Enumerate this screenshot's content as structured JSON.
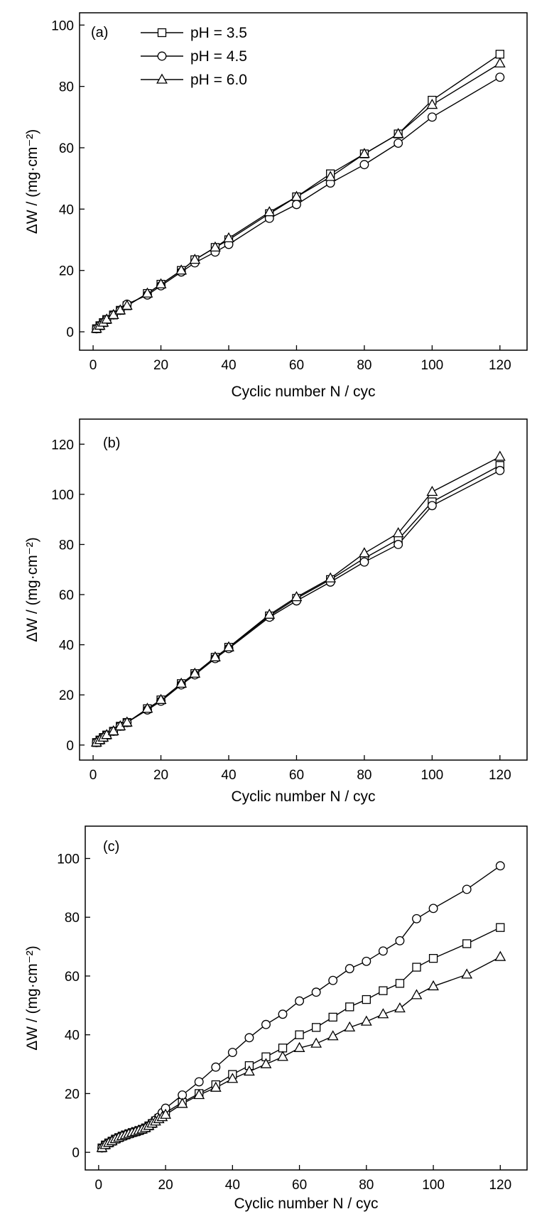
{
  "chart_data": [
    {
      "type": "line",
      "panel_label": "(a)",
      "xlabel": "Cyclic number N / cyc",
      "ylabel": "ΔW / (mg·cm⁻²)",
      "xlim": [
        -4,
        128
      ],
      "ylim": [
        -6,
        104
      ],
      "xticks": [
        0,
        20,
        40,
        60,
        80,
        100,
        120
      ],
      "yticks": [
        0,
        20,
        40,
        60,
        80,
        100
      ],
      "legend_position": "top-left",
      "grid": false,
      "series": [
        {
          "name": "pH = 3.5",
          "marker": "square",
          "x": [
            1,
            2,
            3,
            4,
            6,
            8,
            10,
            16,
            20,
            26,
            30,
            36,
            40,
            52,
            60,
            70,
            80,
            90,
            100,
            120
          ],
          "y": [
            1.0,
            2.0,
            3.0,
            4.0,
            5.5,
            7.0,
            8.5,
            12.5,
            15.5,
            20.0,
            23.5,
            27.5,
            30.0,
            38.5,
            44.0,
            51.5,
            58.0,
            64.5,
            75.5,
            90.5
          ]
        },
        {
          "name": "pH = 4.5",
          "marker": "circle",
          "x": [
            1,
            2,
            3,
            4,
            6,
            8,
            10,
            16,
            20,
            26,
            30,
            36,
            40,
            52,
            60,
            70,
            80,
            90,
            100,
            120
          ],
          "y": [
            1.0,
            2.0,
            3.0,
            4.0,
            5.5,
            7.0,
            9.0,
            12.0,
            15.0,
            19.5,
            22.5,
            26.0,
            28.5,
            37.0,
            41.5,
            48.5,
            54.5,
            61.5,
            70.0,
            83.0
          ]
        },
        {
          "name": "pH = 6.0",
          "marker": "triangle",
          "x": [
            1,
            2,
            3,
            4,
            6,
            8,
            10,
            16,
            20,
            26,
            30,
            36,
            40,
            52,
            60,
            70,
            80,
            90,
            100,
            120
          ],
          "y": [
            1.0,
            2.0,
            3.0,
            4.0,
            5.5,
            7.0,
            8.5,
            12.5,
            15.5,
            20.0,
            23.5,
            27.5,
            30.5,
            39.0,
            44.0,
            50.5,
            58.0,
            64.5,
            74.0,
            87.5
          ]
        }
      ]
    },
    {
      "type": "line",
      "panel_label": "(b)",
      "xlabel": "Cyclic number N / cyc",
      "ylabel": "ΔW / (mg·cm⁻²)",
      "xlim": [
        -4,
        128
      ],
      "ylim": [
        -6,
        130
      ],
      "xticks": [
        0,
        20,
        40,
        60,
        80,
        100,
        120
      ],
      "yticks": [
        0,
        20,
        40,
        60,
        80,
        100,
        120
      ],
      "grid": false,
      "series": [
        {
          "name": "pH = 3.5",
          "marker": "square",
          "x": [
            1,
            2,
            3,
            4,
            6,
            8,
            10,
            16,
            20,
            26,
            30,
            36,
            40,
            52,
            60,
            70,
            80,
            90,
            100,
            120
          ],
          "y": [
            1.0,
            2.0,
            3.0,
            4.0,
            5.5,
            7.5,
            9.0,
            14.5,
            18.0,
            24.5,
            28.5,
            35.0,
            39.0,
            51.5,
            58.5,
            66.0,
            74.5,
            82.0,
            97.0,
            111.5
          ]
        },
        {
          "name": "pH = 4.5",
          "marker": "circle",
          "x": [
            1,
            2,
            3,
            4,
            6,
            8,
            10,
            16,
            20,
            26,
            30,
            36,
            40,
            52,
            60,
            70,
            80,
            90,
            100,
            120
          ],
          "y": [
            1.0,
            2.0,
            3.0,
            4.0,
            5.5,
            7.5,
            9.0,
            14.0,
            17.5,
            24.0,
            28.0,
            34.5,
            38.5,
            51.0,
            57.5,
            65.0,
            73.0,
            80.0,
            95.5,
            109.5
          ]
        },
        {
          "name": "pH = 6.0",
          "marker": "triangle",
          "x": [
            1,
            2,
            3,
            4,
            6,
            8,
            10,
            16,
            20,
            26,
            30,
            36,
            40,
            52,
            60,
            70,
            80,
            90,
            100,
            120
          ],
          "y": [
            1.0,
            2.0,
            3.0,
            4.0,
            5.5,
            7.5,
            9.0,
            14.5,
            18.0,
            24.5,
            28.5,
            35.0,
            39.0,
            52.0,
            59.0,
            66.5,
            76.5,
            84.5,
            101.0,
            115.0
          ]
        }
      ]
    },
    {
      "type": "line",
      "panel_label": "(c)",
      "xlabel": "Cyclic number N / cyc",
      "ylabel": "ΔW / (mg·cm⁻²)",
      "xlim": [
        -4,
        128
      ],
      "ylim": [
        -6,
        111
      ],
      "xticks": [
        0,
        20,
        40,
        60,
        80,
        100,
        120
      ],
      "yticks": [
        0,
        20,
        40,
        60,
        80,
        100
      ],
      "grid": false,
      "series": [
        {
          "name": "pH = 3.5",
          "marker": "square",
          "x": [
            1,
            2,
            3,
            4,
            5,
            6,
            7,
            8,
            9,
            10,
            11,
            12,
            13,
            14,
            15,
            16,
            17,
            18,
            19,
            20,
            25,
            30,
            35,
            40,
            45,
            50,
            55,
            60,
            65,
            70,
            75,
            80,
            85,
            90,
            95,
            100,
            110,
            120
          ],
          "y": [
            1.5,
            2.5,
            3.2,
            3.8,
            4.5,
            5.0,
            5.5,
            5.9,
            6.3,
            6.7,
            7.0,
            7.4,
            7.8,
            8.3,
            9.0,
            9.8,
            10.7,
            11.6,
            12.5,
            13.5,
            17.0,
            20.0,
            23.0,
            26.5,
            29.5,
            32.5,
            35.5,
            40.0,
            42.5,
            46.0,
            49.5,
            52.0,
            55.0,
            57.5,
            63.0,
            66.0,
            71.0,
            76.5
          ]
        },
        {
          "name": "pH = 4.5",
          "marker": "circle",
          "x": [
            1,
            2,
            3,
            4,
            5,
            6,
            7,
            8,
            9,
            10,
            11,
            12,
            13,
            14,
            15,
            16,
            17,
            18,
            19,
            20,
            25,
            30,
            35,
            40,
            45,
            50,
            55,
            60,
            65,
            70,
            75,
            80,
            85,
            90,
            95,
            100,
            110,
            120
          ],
          "y": [
            1.5,
            2.5,
            3.2,
            3.8,
            4.5,
            5.0,
            5.5,
            5.9,
            6.3,
            6.7,
            7.0,
            7.4,
            7.8,
            8.3,
            9.0,
            10.0,
            11.0,
            12.0,
            13.5,
            15.0,
            19.5,
            24.0,
            29.0,
            34.0,
            39.0,
            43.5,
            47.0,
            51.5,
            54.5,
            58.5,
            62.5,
            65.0,
            68.5,
            72.0,
            79.5,
            83.0,
            89.5,
            97.5
          ]
        },
        {
          "name": "pH = 6.0",
          "marker": "triangle",
          "x": [
            1,
            2,
            3,
            4,
            5,
            6,
            7,
            8,
            9,
            10,
            11,
            12,
            13,
            14,
            15,
            16,
            17,
            18,
            19,
            20,
            25,
            30,
            35,
            40,
            45,
            50,
            55,
            60,
            65,
            70,
            75,
            80,
            85,
            90,
            95,
            100,
            110,
            120
          ],
          "y": [
            1.5,
            2.5,
            3.2,
            3.8,
            4.5,
            5.0,
            5.5,
            5.9,
            6.3,
            6.7,
            7.0,
            7.4,
            7.8,
            8.3,
            9.0,
            9.8,
            10.5,
            11.3,
            12.0,
            12.8,
            16.5,
            19.5,
            22.0,
            25.0,
            27.5,
            30.0,
            32.5,
            35.5,
            37.0,
            39.5,
            42.5,
            44.5,
            47.0,
            49.0,
            53.5,
            56.5,
            60.5,
            66.5
          ]
        }
      ]
    }
  ]
}
